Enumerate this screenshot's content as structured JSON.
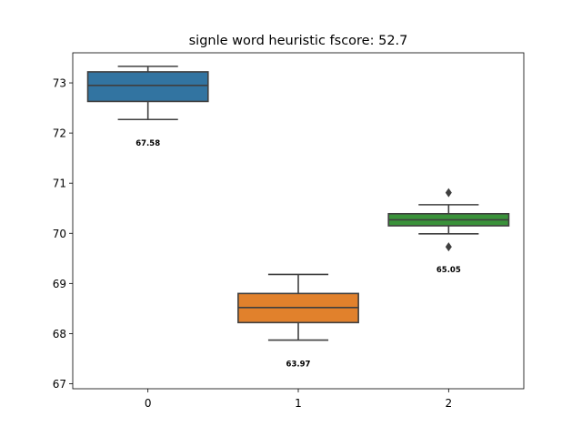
{
  "chart_data": {
    "type": "box",
    "title": "signle word heuristic fscore: 52.7",
    "xlabel": "",
    "ylabel": "",
    "categories": [
      "0",
      "1",
      "2"
    ],
    "ylim": [
      66.9,
      73.6
    ],
    "yticks": [
      "67",
      "68",
      "69",
      "70",
      "71",
      "72",
      "73"
    ],
    "grid": false,
    "boxes": [
      {
        "category": "0",
        "whisker_low": 72.27,
        "q1": 72.63,
        "median": 72.95,
        "q3": 73.22,
        "whisker_high": 73.33,
        "outliers": [],
        "color": "#3274a1",
        "annotation": "67.58",
        "annotation_y": 71.8
      },
      {
        "category": "1",
        "whisker_low": 67.87,
        "q1": 68.22,
        "median": 68.52,
        "q3": 68.8,
        "whisker_high": 69.18,
        "outliers": [],
        "color": "#e1812c",
        "annotation": "63.97",
        "annotation_y": 67.4
      },
      {
        "category": "2",
        "whisker_low": 69.99,
        "q1": 70.15,
        "median": 70.27,
        "q3": 70.39,
        "whisker_high": 70.57,
        "outliers": [
          70.81,
          69.73
        ],
        "color": "#3a923a",
        "annotation": "65.05",
        "annotation_y": 69.28
      }
    ]
  }
}
